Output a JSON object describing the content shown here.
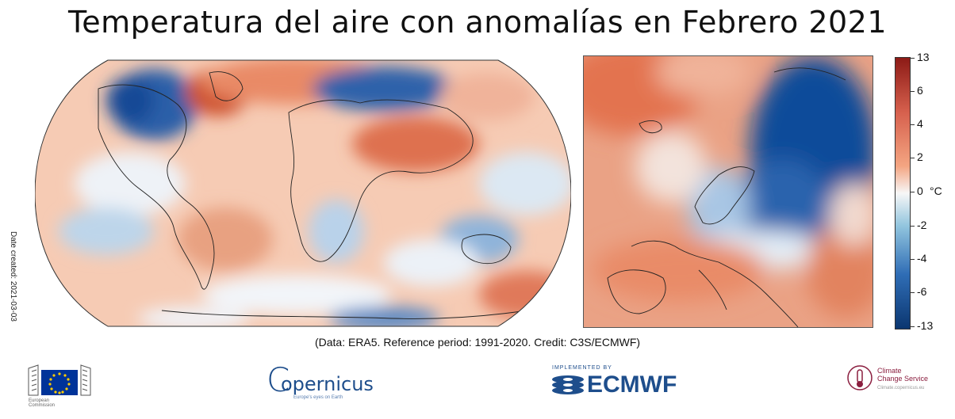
{
  "title": "Temperatura del aire con anomalías en Febrero 2021",
  "date_created": "Date created: 2021-03-03",
  "credit": "(Data: ERA5.  Reference period: 1991-2020.  Credit: C3S/ECMWF)",
  "colorbar": {
    "unit": "°C",
    "ticks": [
      "13",
      "6",
      "4",
      "2",
      "0",
      "-2",
      "-4",
      "-6",
      "-13"
    ],
    "colors": [
      "#08306b",
      "#2166ac",
      "#4393c3",
      "#92c5de",
      "#d1e5f0",
      "#f7f7f7",
      "#fddbc7",
      "#f4a582",
      "#d6604d",
      "#b2182b",
      "#67001f"
    ]
  },
  "maps": [
    {
      "name": "world-anomaly-map",
      "projection": "Robinson"
    },
    {
      "name": "europe-anomaly-map",
      "projection": "regional"
    }
  ],
  "logos": {
    "eu": {
      "text": "European Commission"
    },
    "copernicus": {
      "text": "opernicus",
      "initial": "C",
      "subtitle": "Europe's eyes on Earth"
    },
    "ecmwf": {
      "text": "ECMWF",
      "kicker": "IMPLEMENTED BY"
    },
    "c3s": {
      "line1": "Climate",
      "line2": "Change Service",
      "subtitle": "Climate.copernicus.eu"
    }
  }
}
